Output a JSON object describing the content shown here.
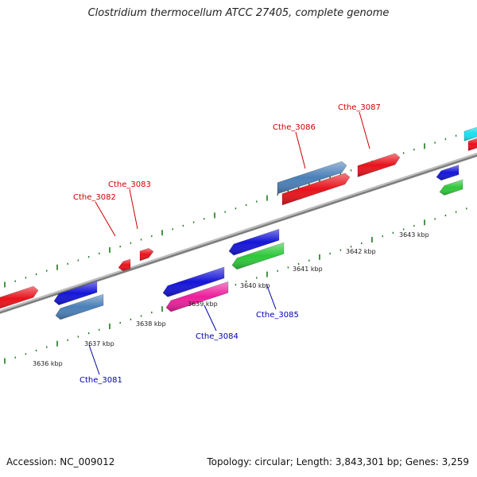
{
  "title": "Clostridium thermocellum ATCC 27405, complete genome",
  "footer": {
    "accession": "Accession: NC_009012",
    "summary": "Topology: circular; Length: 3,843,301 bp; Genes: 3,259"
  },
  "colors": {
    "backbone": "#8a8a8a",
    "forward_label": "#cc0000",
    "reverse_label": "#0000aa",
    "tick": "#1a7a1a"
  },
  "scale": {
    "unit": "kbp",
    "labels": [
      "3636 kbp",
      "3637 kbp",
      "3638 kbp",
      "3639 kbp",
      "3640 kbp",
      "3641 kbp",
      "3642 kbp",
      "3643 kbp"
    ]
  },
  "gene_labels": [
    {
      "text": "Cthe_3082",
      "strand": "forward"
    },
    {
      "text": "Cthe_3083",
      "strand": "forward"
    },
    {
      "text": "Cthe_3086",
      "strand": "forward"
    },
    {
      "text": "Cthe_3087",
      "strand": "forward"
    },
    {
      "text": "Cthe_3081",
      "strand": "reverse"
    },
    {
      "text": "Cthe_3084",
      "strand": "reverse"
    },
    {
      "text": "Cthe_3085",
      "strand": "reverse"
    }
  ]
}
